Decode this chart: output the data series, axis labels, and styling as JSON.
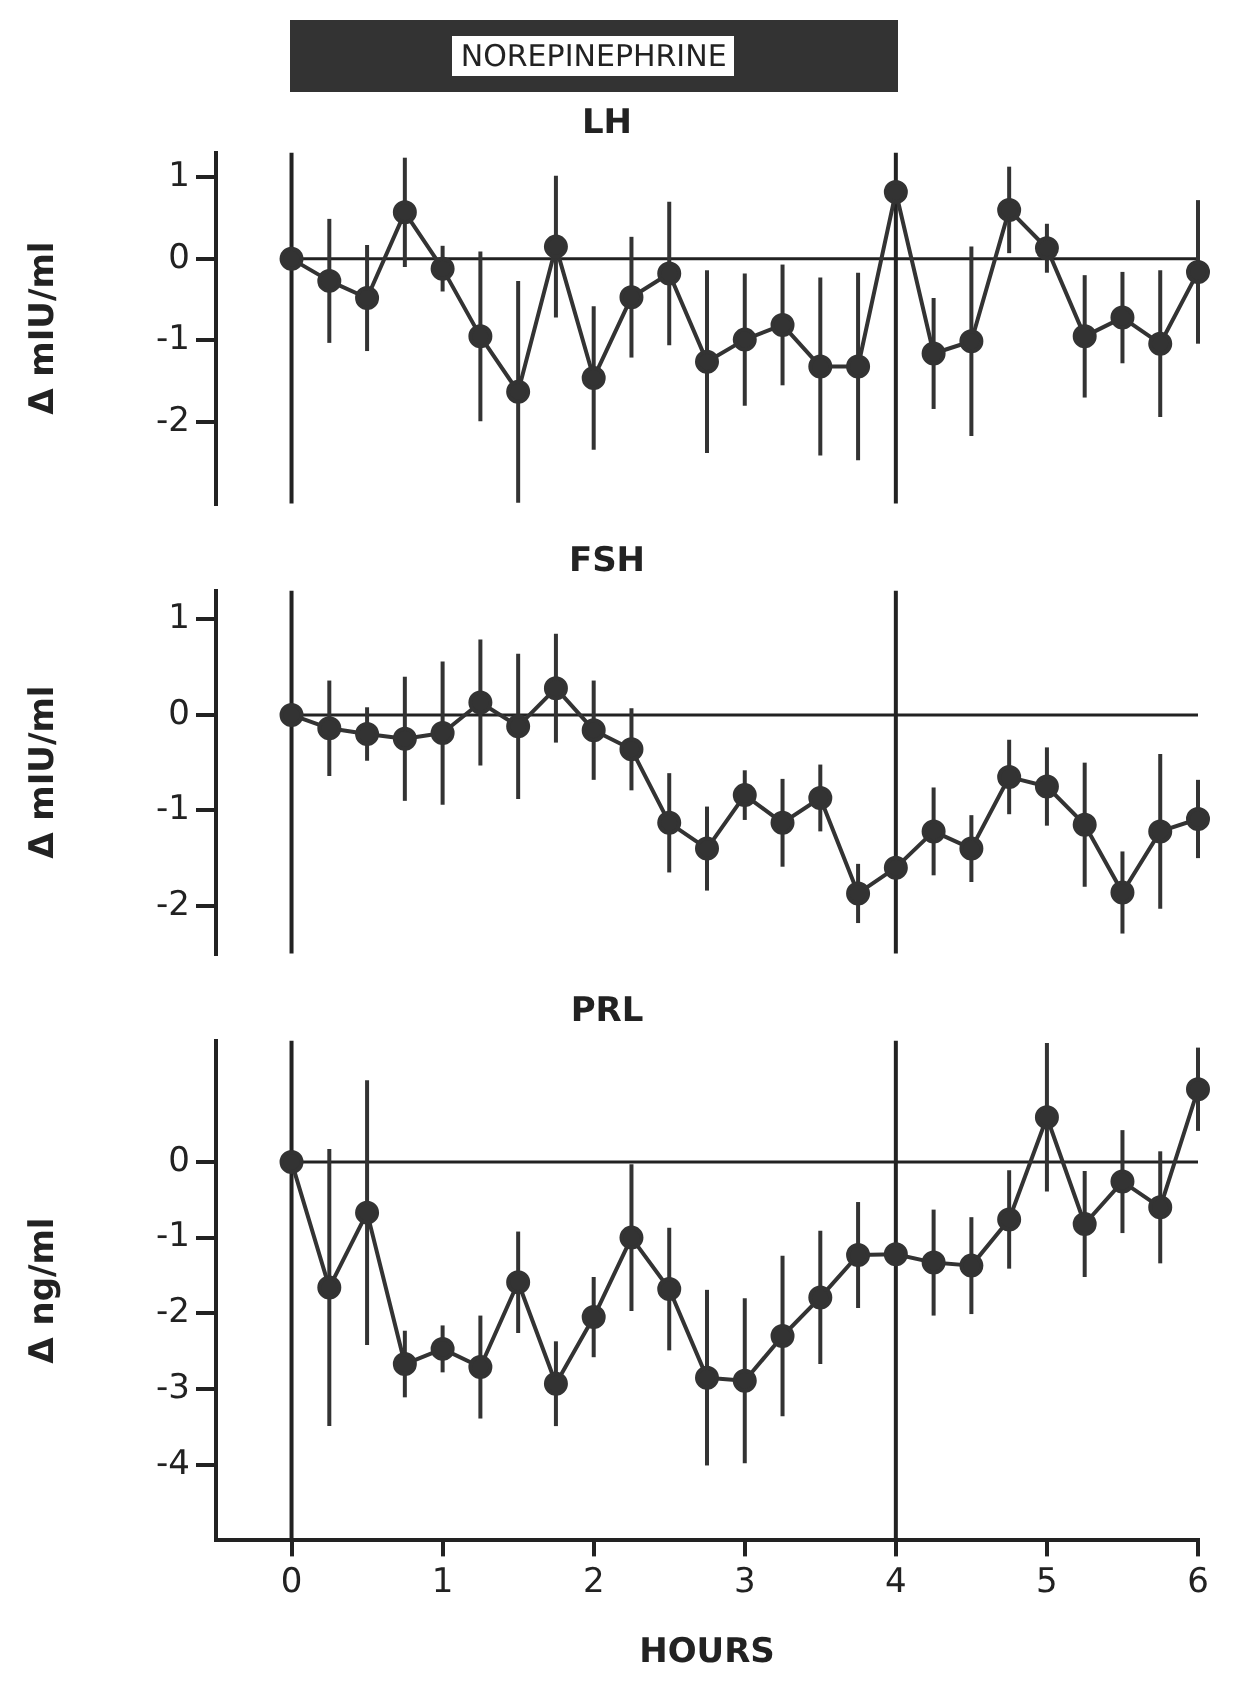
{
  "chart_data": [
    {
      "type": "line",
      "title": "LH",
      "ylabel": "Δ mIU/ml",
      "color": "#333333",
      "marker": "circle",
      "grid": false,
      "legend": false,
      "tick_labels": "y",
      "x": [
        0,
        0.25,
        0.5,
        0.75,
        1,
        1.25,
        1.5,
        1.75,
        2,
        2.25,
        2.5,
        2.75,
        3,
        3.25,
        3.5,
        3.75,
        4,
        4.25,
        4.5,
        4.75,
        5,
        5.25,
        5.5,
        5.75,
        6
      ],
      "values": [
        0,
        -0.27,
        -0.48,
        0.57,
        -0.12,
        -0.95,
        -1.63,
        0.15,
        -1.46,
        -0.47,
        -0.18,
        -1.26,
        -0.99,
        -0.81,
        -1.32,
        -1.32,
        0.82,
        -1.16,
        -1.01,
        0.6,
        0.13,
        -0.95,
        -0.72,
        -1.04,
        -0.16
      ],
      "errors": [
        null,
        0.76,
        0.65,
        0.67,
        0.28,
        1.04,
        1.36,
        0.87,
        0.88,
        0.74,
        0.88,
        1.12,
        0.81,
        0.74,
        1.09,
        1.15,
        null,
        0.68,
        1.16,
        0.53,
        0.3,
        0.75,
        0.56,
        0.9,
        0.88
      ],
      "xlim": [
        -0.5,
        6
      ],
      "ylim": [
        -3,
        1.3
      ],
      "yticks": [
        1,
        0,
        -1,
        -2
      ],
      "ref_lines": [
        {
          "axis": "y",
          "value": 0
        },
        {
          "axis": "x",
          "value": 0
        },
        {
          "axis": "x",
          "value": 4
        }
      ],
      "annotations": [
        "NOREPINEPHRINE"
      ]
    },
    {
      "type": "line",
      "title": "FSH",
      "ylabel": "Δ mIU/ml",
      "color": "#333333",
      "marker": "circle",
      "grid": false,
      "legend": false,
      "tick_labels": "y",
      "x": [
        0,
        0.25,
        0.5,
        0.75,
        1,
        1.25,
        1.5,
        1.75,
        2,
        2.25,
        2.5,
        2.75,
        3,
        3.25,
        3.5,
        3.75,
        4,
        4.25,
        4.5,
        4.75,
        5,
        5.25,
        5.5,
        5.75,
        6
      ],
      "values": [
        0,
        -0.14,
        -0.2,
        -0.25,
        -0.19,
        0.13,
        -0.12,
        0.28,
        -0.16,
        -0.36,
        -1.13,
        -1.4,
        -0.84,
        -1.13,
        -0.87,
        -1.87,
        -1.6,
        -1.22,
        -1.4,
        -0.65,
        -0.75,
        -1.15,
        -1.86,
        -1.22,
        -1.09
      ],
      "errors": [
        null,
        0.5,
        0.28,
        0.65,
        0.75,
        0.66,
        0.76,
        0.57,
        0.52,
        0.43,
        0.52,
        0.44,
        0.26,
        0.46,
        0.35,
        0.31,
        null,
        0.46,
        0.35,
        0.39,
        0.41,
        0.65,
        0.43,
        0.81,
        0.41
      ],
      "xlim": [
        -0.5,
        6
      ],
      "ylim": [
        -2.5,
        1.3
      ],
      "yticks": [
        1,
        0,
        -1,
        -2
      ],
      "ref_lines": [
        {
          "axis": "y",
          "value": 0
        },
        {
          "axis": "x",
          "value": 0
        },
        {
          "axis": "x",
          "value": 4
        }
      ]
    },
    {
      "type": "line",
      "title": "PRL",
      "xlabel": "HOURS",
      "ylabel": "Δ ng/ml",
      "color": "#333333",
      "marker": "circle",
      "grid": false,
      "legend": false,
      "x": [
        0,
        0.25,
        0.5,
        0.75,
        1,
        1.25,
        1.5,
        1.75,
        2,
        2.25,
        2.5,
        2.75,
        3,
        3.25,
        3.5,
        3.75,
        4,
        4.25,
        4.5,
        4.75,
        5,
        5.25,
        5.5,
        5.75,
        6
      ],
      "values": [
        0,
        -1.66,
        -0.67,
        -2.67,
        -2.47,
        -2.71,
        -1.59,
        -2.93,
        -2.05,
        -1.0,
        -1.68,
        -2.85,
        -2.89,
        -2.3,
        -1.79,
        -1.23,
        -1.22,
        -1.33,
        -1.37,
        -0.76,
        0.59,
        -0.82,
        -0.26,
        -0.6,
        0.96
      ],
      "errors": [
        null,
        1.83,
        1.75,
        0.44,
        0.31,
        0.68,
        0.67,
        0.56,
        0.53,
        0.97,
        0.81,
        1.16,
        1.09,
        1.06,
        0.88,
        0.7,
        null,
        0.7,
        0.64,
        0.65,
        0.98,
        0.7,
        0.68,
        0.74,
        0.55
      ],
      "xlim": [
        -0.5,
        6
      ],
      "xticks": [
        0,
        1,
        2,
        3,
        4,
        5,
        6
      ],
      "ylim": [
        -5,
        1.6
      ],
      "yticks": [
        0,
        -1,
        -2,
        -3,
        -4
      ],
      "ref_lines": [
        {
          "axis": "y",
          "value": 0
        },
        {
          "axis": "x",
          "value": 0
        },
        {
          "axis": "x",
          "value": 4
        }
      ]
    }
  ]
}
